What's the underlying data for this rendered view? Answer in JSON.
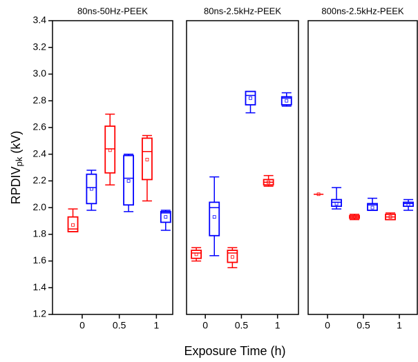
{
  "chart_data": {
    "type": "box",
    "ylabel": {
      "main": "RPDIV",
      "sub": "pk",
      "unit": "(kV)"
    },
    "xlabel": "Exposure Time (h)",
    "ylim": [
      1.2,
      3.4
    ],
    "yticks": [
      1.2,
      1.4,
      1.6,
      1.8,
      {
        "value": 2,
        "label": "2.0"
      },
      2.2,
      2.4,
      2.6,
      2.8,
      {
        "value": 3,
        "label": "3.0"
      },
      3.2,
      3.4
    ],
    "panels": [
      {
        "title": "80ns-50Hz-PEEK",
        "xlim": [
          -0.4,
          1.22
        ],
        "xticks": [
          0,
          0.5,
          1
        ],
        "boxes": [
          {
            "x": -0.125,
            "color": "#ff0000",
            "whisker_low": 1.82,
            "q1": 1.82,
            "median": 1.84,
            "q3": 1.93,
            "whisker_high": 1.99,
            "mean": 1.87
          },
          {
            "x": 0.125,
            "color": "#0000ff",
            "whisker_low": 1.98,
            "q1": 2.03,
            "median": 2.15,
            "q3": 2.25,
            "whisker_high": 2.28,
            "mean": 2.14
          },
          {
            "x": 0.375,
            "color": "#ff0000",
            "whisker_low": 2.17,
            "q1": 2.26,
            "median": 2.44,
            "q3": 2.61,
            "whisker_high": 2.7,
            "mean": 2.43
          },
          {
            "x": 0.625,
            "color": "#0000ff",
            "whisker_low": 1.97,
            "q1": 2.02,
            "median": 2.22,
            "q3": 2.39,
            "whisker_high": 2.4,
            "mean": 2.2
          },
          {
            "x": 0.875,
            "color": "#ff0000",
            "whisker_low": 2.05,
            "q1": 2.21,
            "median": 2.42,
            "q3": 2.52,
            "whisker_high": 2.54,
            "mean": 2.36
          },
          {
            "x": 1.125,
            "color": "#0000ff",
            "whisker_low": 1.83,
            "q1": 1.89,
            "median": 1.96,
            "q3": 1.97,
            "whisker_high": 1.98,
            "mean": 1.93
          }
        ]
      },
      {
        "title": "80ns-2.5kHz-PEEK",
        "xlim": [
          -0.26,
          1.29
        ],
        "xticks": [
          0,
          0.5,
          1
        ],
        "boxes": [
          {
            "x": -0.125,
            "color": "#ff0000",
            "whisker_low": 1.6,
            "q1": 1.62,
            "median": 1.66,
            "q3": 1.68,
            "whisker_high": 1.7,
            "mean": 1.65
          },
          {
            "x": 0.125,
            "color": "#0000ff",
            "whisker_low": 1.64,
            "q1": 1.79,
            "median": 2.0,
            "q3": 2.04,
            "whisker_high": 2.23,
            "mean": 1.93
          },
          {
            "x": 0.375,
            "color": "#ff0000",
            "whisker_low": 1.55,
            "q1": 1.59,
            "median": 1.66,
            "q3": 1.68,
            "whisker_high": 1.7,
            "mean": 1.63
          },
          {
            "x": 0.625,
            "color": "#0000ff",
            "whisker_low": 2.71,
            "q1": 2.77,
            "median": 2.84,
            "q3": 2.87,
            "whisker_high": 2.87,
            "mean": 2.82
          },
          {
            "x": 0.875,
            "color": "#ff0000",
            "whisker_low": 2.16,
            "q1": 2.17,
            "median": 2.19,
            "q3": 2.21,
            "whisker_high": 2.24,
            "mean": 2.19
          },
          {
            "x": 1.125,
            "color": "#0000ff",
            "whisker_low": 2.76,
            "q1": 2.77,
            "median": 2.82,
            "q3": 2.83,
            "whisker_high": 2.86,
            "mean": 2.8
          }
        ]
      },
      {
        "title": "800ns-2.5kHz-PEEK",
        "xlim": [
          -0.27,
          1.25
        ],
        "xticks": [
          0,
          0.5,
          1
        ],
        "boxes": [
          {
            "x": -0.125,
            "color": "#ff0000",
            "whisker_low": 2.1,
            "q1": 2.1,
            "median": 2.1,
            "q3": 2.1,
            "whisker_high": 2.1,
            "mean": 2.1
          },
          {
            "x": 0.125,
            "color": "#0000ff",
            "whisker_low": 1.99,
            "q1": 2.01,
            "median": 2.04,
            "q3": 2.06,
            "whisker_high": 2.15,
            "mean": 2.03
          },
          {
            "x": 0.375,
            "color": "#ff0000",
            "whisker_low": 1.91,
            "q1": 1.92,
            "median": 1.93,
            "q3": 1.94,
            "whisker_high": 1.95,
            "mean": 1.93
          },
          {
            "x": 0.625,
            "color": "#0000ff",
            "whisker_low": 1.98,
            "q1": 1.98,
            "median": 2.02,
            "q3": 2.03,
            "whisker_high": 2.07,
            "mean": 2.0
          },
          {
            "x": 0.875,
            "color": "#ff0000",
            "whisker_low": 1.91,
            "q1": 1.91,
            "median": 1.93,
            "q3": 1.95,
            "whisker_high": 1.96,
            "mean": 1.93
          },
          {
            "x": 1.125,
            "color": "#0000ff",
            "whisker_low": 1.98,
            "q1": 2.01,
            "median": 2.03,
            "q3": 2.04,
            "whisker_high": 2.06,
            "mean": 2.02
          }
        ]
      }
    ]
  }
}
